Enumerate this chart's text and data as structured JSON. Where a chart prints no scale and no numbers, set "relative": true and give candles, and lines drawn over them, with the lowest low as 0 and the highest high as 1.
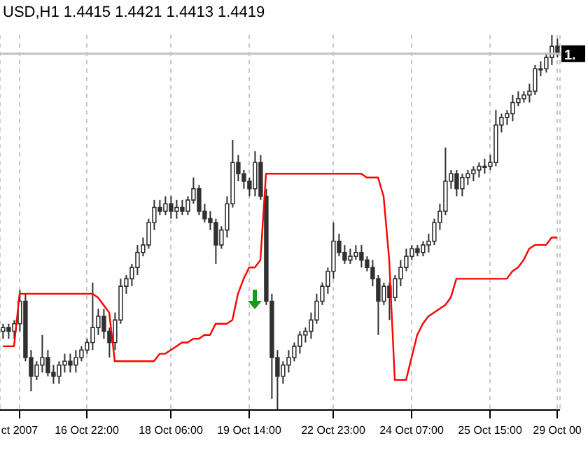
{
  "chart_data": {
    "type": "candlestick",
    "relative": true,
    "title": "USD,H1  1.4415 1.4421 1.4413 1.4419",
    "color": "#303030",
    "grid": "x",
    "legend": false,
    "categories": [
      null,
      null,
      null,
      "ct 2007",
      null,
      null,
      null,
      null,
      null,
      null,
      null,
      null,
      null,
      null,
      null,
      "16 Oct 22:00",
      null,
      null,
      null,
      null,
      null,
      null,
      null,
      null,
      null,
      null,
      null,
      null,
      null,
      null,
      "18 Oct 06:00",
      null,
      null,
      null,
      null,
      null,
      null,
      null,
      null,
      null,
      null,
      null,
      null,
      null,
      "19 Oct 14:00",
      null,
      null,
      null,
      null,
      null,
      null,
      null,
      null,
      null,
      null,
      null,
      null,
      null,
      null,
      "22 Oct 23:00",
      null,
      null,
      null,
      null,
      null,
      null,
      null,
      null,
      null,
      null,
      null,
      null,
      null,
      "24 Oct 07:00",
      null,
      null,
      null,
      null,
      null,
      null,
      null,
      null,
      null,
      null,
      null,
      null,
      null,
      "25 Oct 15:00",
      null,
      null,
      null,
      null,
      null,
      null,
      null,
      null,
      null,
      null,
      null,
      "29 Oct 00"
    ],
    "ohlc": [
      [
        0.21,
        0.23,
        0.19,
        0.22
      ],
      [
        0.22,
        0.23,
        0.19,
        0.21
      ],
      [
        0.21,
        0.24,
        0.19,
        0.23
      ],
      [
        0.23,
        0.32,
        0.21,
        0.29
      ],
      [
        0.29,
        0.31,
        0.13,
        0.14
      ],
      [
        0.14,
        0.16,
        0.05,
        0.09
      ],
      [
        0.09,
        0.13,
        0.08,
        0.12
      ],
      [
        0.12,
        0.2,
        0.1,
        0.14
      ],
      [
        0.14,
        0.16,
        0.09,
        0.1
      ],
      [
        0.1,
        0.12,
        0.07,
        0.09
      ],
      [
        0.09,
        0.13,
        0.07,
        0.12
      ],
      [
        0.12,
        0.15,
        0.1,
        0.13
      ],
      [
        0.13,
        0.15,
        0.1,
        0.12
      ],
      [
        0.12,
        0.16,
        0.1,
        0.14
      ],
      [
        0.14,
        0.17,
        0.13,
        0.16
      ],
      [
        0.16,
        0.19,
        0.15,
        0.18
      ],
      [
        0.18,
        0.34,
        0.16,
        0.22
      ],
      [
        0.22,
        0.27,
        0.2,
        0.25
      ],
      [
        0.25,
        0.27,
        0.19,
        0.21
      ],
      [
        0.21,
        0.22,
        0.14,
        0.18
      ],
      [
        0.18,
        0.26,
        0.16,
        0.24
      ],
      [
        0.24,
        0.35,
        0.23,
        0.33
      ],
      [
        0.33,
        0.36,
        0.31,
        0.35
      ],
      [
        0.35,
        0.39,
        0.33,
        0.38
      ],
      [
        0.38,
        0.44,
        0.36,
        0.42
      ],
      [
        0.42,
        0.46,
        0.41,
        0.44
      ],
      [
        0.44,
        0.51,
        0.43,
        0.5
      ],
      [
        0.5,
        0.56,
        0.48,
        0.54
      ],
      [
        0.54,
        0.56,
        0.52,
        0.53
      ],
      [
        0.53,
        0.57,
        0.52,
        0.55
      ],
      [
        0.55,
        0.57,
        0.51,
        0.53
      ],
      [
        0.53,
        0.56,
        0.51,
        0.54
      ],
      [
        0.54,
        0.56,
        0.52,
        0.53
      ],
      [
        0.53,
        0.57,
        0.52,
        0.56
      ],
      [
        0.56,
        0.62,
        0.55,
        0.59
      ],
      [
        0.59,
        0.6,
        0.52,
        0.53
      ],
      [
        0.53,
        0.55,
        0.5,
        0.51
      ],
      [
        0.51,
        0.53,
        0.48,
        0.5
      ],
      [
        0.5,
        0.51,
        0.39,
        0.44
      ],
      [
        0.44,
        0.49,
        0.43,
        0.48
      ],
      [
        0.48,
        0.57,
        0.46,
        0.55
      ],
      [
        0.55,
        0.72,
        0.54,
        0.66
      ],
      [
        0.66,
        0.68,
        0.61,
        0.63
      ],
      [
        0.63,
        0.64,
        0.59,
        0.61
      ],
      [
        0.61,
        0.62,
        0.57,
        0.59
      ],
      [
        0.59,
        0.69,
        0.57,
        0.66
      ],
      [
        0.66,
        0.68,
        0.56,
        0.57
      ],
      [
        0.57,
        0.59,
        0.28,
        0.29
      ],
      [
        0.29,
        0.31,
        0.03,
        0.14
      ],
      [
        0.14,
        0.16,
        0.0,
        0.09
      ],
      [
        0.09,
        0.13,
        0.07,
        0.12
      ],
      [
        0.12,
        0.16,
        0.1,
        0.14
      ],
      [
        0.14,
        0.18,
        0.13,
        0.17
      ],
      [
        0.17,
        0.21,
        0.15,
        0.2
      ],
      [
        0.2,
        0.22,
        0.18,
        0.21
      ],
      [
        0.21,
        0.26,
        0.19,
        0.24
      ],
      [
        0.24,
        0.31,
        0.23,
        0.29
      ],
      [
        0.29,
        0.34,
        0.28,
        0.33
      ],
      [
        0.33,
        0.38,
        0.31,
        0.37
      ],
      [
        0.37,
        0.5,
        0.35,
        0.45
      ],
      [
        0.45,
        0.47,
        0.41,
        0.42
      ],
      [
        0.42,
        0.44,
        0.39,
        0.4
      ],
      [
        0.4,
        0.43,
        0.39,
        0.41
      ],
      [
        0.41,
        0.44,
        0.4,
        0.42
      ],
      [
        0.42,
        0.44,
        0.38,
        0.4
      ],
      [
        0.4,
        0.41,
        0.37,
        0.38
      ],
      [
        0.38,
        0.4,
        0.33,
        0.35
      ],
      [
        0.35,
        0.36,
        0.2,
        0.29
      ],
      [
        0.29,
        0.34,
        0.28,
        0.33
      ],
      [
        0.33,
        0.34,
        0.24,
        0.3
      ],
      [
        0.3,
        0.36,
        0.29,
        0.35
      ],
      [
        0.35,
        0.4,
        0.33,
        0.38
      ],
      [
        0.38,
        0.43,
        0.37,
        0.41
      ],
      [
        0.41,
        0.44,
        0.4,
        0.43
      ],
      [
        0.43,
        0.44,
        0.41,
        0.42
      ],
      [
        0.42,
        0.45,
        0.41,
        0.44
      ],
      [
        0.44,
        0.47,
        0.42,
        0.45
      ],
      [
        0.45,
        0.51,
        0.44,
        0.5
      ],
      [
        0.5,
        0.55,
        0.48,
        0.53
      ],
      [
        0.53,
        0.7,
        0.52,
        0.61
      ],
      [
        0.61,
        0.64,
        0.59,
        0.63
      ],
      [
        0.63,
        0.64,
        0.57,
        0.59
      ],
      [
        0.59,
        0.63,
        0.57,
        0.62
      ],
      [
        0.62,
        0.64,
        0.6,
        0.63
      ],
      [
        0.63,
        0.65,
        0.61,
        0.64
      ],
      [
        0.64,
        0.66,
        0.62,
        0.65
      ],
      [
        0.65,
        0.67,
        0.63,
        0.65
      ],
      [
        0.65,
        0.68,
        0.64,
        0.66
      ],
      [
        0.66,
        0.8,
        0.65,
        0.76
      ],
      [
        0.76,
        0.79,
        0.74,
        0.78
      ],
      [
        0.78,
        0.8,
        0.76,
        0.79
      ],
      [
        0.79,
        0.84,
        0.77,
        0.82
      ],
      [
        0.82,
        0.85,
        0.81,
        0.83
      ],
      [
        0.83,
        0.85,
        0.82,
        0.84
      ],
      [
        0.84,
        0.87,
        0.82,
        0.85
      ],
      [
        0.85,
        0.92,
        0.84,
        0.91
      ],
      [
        0.91,
        0.93,
        0.89,
        0.91
      ],
      [
        0.91,
        0.95,
        0.9,
        0.94
      ],
      [
        0.94,
        1.0,
        0.92,
        0.97
      ],
      [
        0.97,
        0.99,
        0.94,
        0.95
      ]
    ],
    "series": [
      {
        "type": "line",
        "color": "#ff0000",
        "values": [
          0.17,
          0.17,
          0.17,
          0.31,
          0.31,
          0.31,
          0.31,
          0.31,
          0.31,
          0.31,
          0.31,
          0.31,
          0.31,
          0.31,
          0.31,
          0.31,
          0.31,
          0.3,
          0.28,
          0.26,
          0.13,
          0.13,
          0.13,
          0.13,
          0.13,
          0.13,
          0.13,
          0.13,
          0.15,
          0.15,
          0.16,
          0.17,
          0.18,
          0.18,
          0.19,
          0.19,
          0.2,
          0.2,
          0.23,
          0.23,
          0.23,
          0.24,
          0.31,
          0.35,
          0.38,
          0.38,
          0.4,
          0.63,
          0.63,
          0.63,
          0.63,
          0.63,
          0.63,
          0.63,
          0.63,
          0.63,
          0.63,
          0.63,
          0.63,
          0.63,
          0.63,
          0.63,
          0.63,
          0.63,
          0.63,
          0.62,
          0.62,
          0.62,
          0.57,
          0.4,
          0.08,
          0.08,
          0.08,
          0.14,
          0.2,
          0.23,
          0.25,
          0.26,
          0.27,
          0.28,
          0.3,
          0.35,
          0.35,
          0.35,
          0.35,
          0.35,
          0.35,
          0.35,
          0.35,
          0.35,
          0.35,
          0.37,
          0.38,
          0.4,
          0.43,
          0.44,
          0.44,
          0.44,
          0.46,
          0.46
        ]
      }
    ],
    "ref_lines": [
      {
        "axis": "y",
        "value": 0.95,
        "label": "1.",
        "color": "#c0c0c0"
      }
    ]
  }
}
